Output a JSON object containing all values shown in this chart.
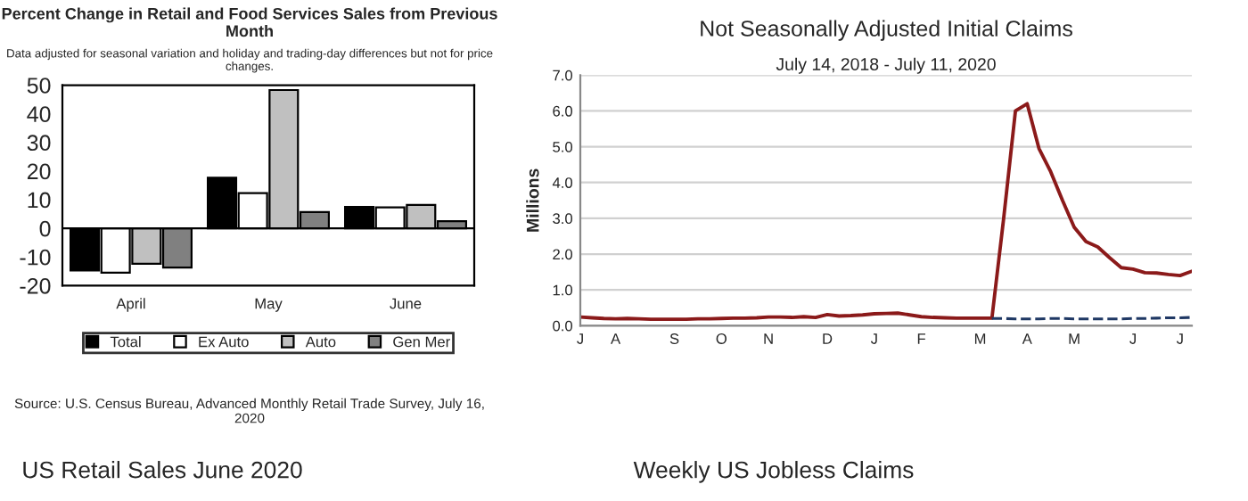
{
  "chart_data": [
    {
      "type": "bar",
      "title": "Percent Change in Retail and Food Services Sales from Previous Month",
      "subtitle": "Data adjusted for seasonal variation and holiday and trading-day differences but not for price changes.",
      "categories": [
        "April",
        "May",
        "June"
      ],
      "series": [
        {
          "name": "Total",
          "color": "#000000",
          "values": [
            -14.7,
            17.7,
            7.5
          ]
        },
        {
          "name": "Ex Auto",
          "color": "#ffffff",
          "values": [
            -15.5,
            12.3,
            7.3
          ]
        },
        {
          "name": "Auto",
          "color": "#c0c0c0",
          "values": [
            -12.4,
            48.3,
            8.2
          ]
        },
        {
          "name": "Gen Mer",
          "color": "#808080",
          "values": [
            -13.7,
            5.7,
            2.5
          ]
        }
      ],
      "ylim": [
        -20,
        50
      ],
      "yticks": [
        -20,
        -10,
        0,
        10,
        20,
        30,
        40,
        50
      ],
      "legend": "bottom",
      "annotations": [
        "Source: U.S. Census Bureau, Advanced Monthly Retail Trade Survey, July 16, 2020",
        "US Retail Sales June 2020"
      ]
    },
    {
      "type": "line",
      "title": "Not Seasonally Adjusted Initial Claims",
      "subtitle": "July 14, 2018 - July 11, 2020",
      "ylabel": "Millions",
      "categories": [
        "J",
        null,
        null,
        "A",
        null,
        null,
        null,
        null,
        "S",
        null,
        null,
        null,
        "O",
        null,
        null,
        null,
        "N",
        null,
        null,
        null,
        null,
        "D",
        null,
        null,
        null,
        "J",
        null,
        null,
        null,
        "F",
        null,
        null,
        null,
        null,
        "M",
        null,
        null,
        null,
        "A",
        null,
        null,
        null,
        "M",
        null,
        null,
        null,
        null,
        "J",
        null,
        null,
        null,
        "J",
        null
      ],
      "series": [
        {
          "color": "#8b1a1a",
          "line_style": "solid",
          "values": [
            0.24,
            0.22,
            0.2,
            0.19,
            0.2,
            0.19,
            0.18,
            0.18,
            0.18,
            0.18,
            0.19,
            0.19,
            0.2,
            0.21,
            0.21,
            0.22,
            0.24,
            0.24,
            0.23,
            0.25,
            0.23,
            0.31,
            0.27,
            0.28,
            0.3,
            0.33,
            0.34,
            0.35,
            0.3,
            0.25,
            0.23,
            0.22,
            0.21,
            0.21,
            0.21,
            0.21,
            3.0,
            6.0,
            6.2,
            4.95,
            4.3,
            3.5,
            2.75,
            2.35,
            2.2,
            1.9,
            1.62,
            1.58,
            1.48,
            1.47,
            1.43,
            1.4,
            1.52
          ]
        },
        {
          "color": "#1f3864",
          "line_style": "dashed",
          "values": [
            null,
            null,
            null,
            null,
            null,
            null,
            null,
            null,
            null,
            null,
            null,
            null,
            null,
            null,
            null,
            null,
            null,
            null,
            null,
            null,
            null,
            null,
            null,
            null,
            null,
            null,
            null,
            null,
            null,
            null,
            null,
            null,
            null,
            null,
            null,
            0.2,
            0.2,
            0.19,
            0.19,
            0.19,
            0.2,
            0.2,
            0.19,
            0.19,
            0.19,
            0.19,
            0.19,
            0.2,
            0.2,
            0.21,
            0.22,
            0.22,
            0.23
          ]
        }
      ],
      "ylim": [
        0,
        7
      ],
      "yticks": [
        {
          "value": 0,
          "label": "0.0"
        },
        {
          "value": 1,
          "label": "1.0"
        },
        {
          "value": 2,
          "label": "2.0"
        },
        {
          "value": 3,
          "label": "3.0"
        },
        {
          "value": 4,
          "label": "4.0"
        },
        {
          "value": 5,
          "label": "5.0"
        },
        {
          "value": 6,
          "label": "6.0"
        },
        {
          "value": 7,
          "label": "7.0"
        }
      ],
      "grid": "y",
      "annotations": [
        "Weekly US Jobless Claims"
      ]
    }
  ]
}
